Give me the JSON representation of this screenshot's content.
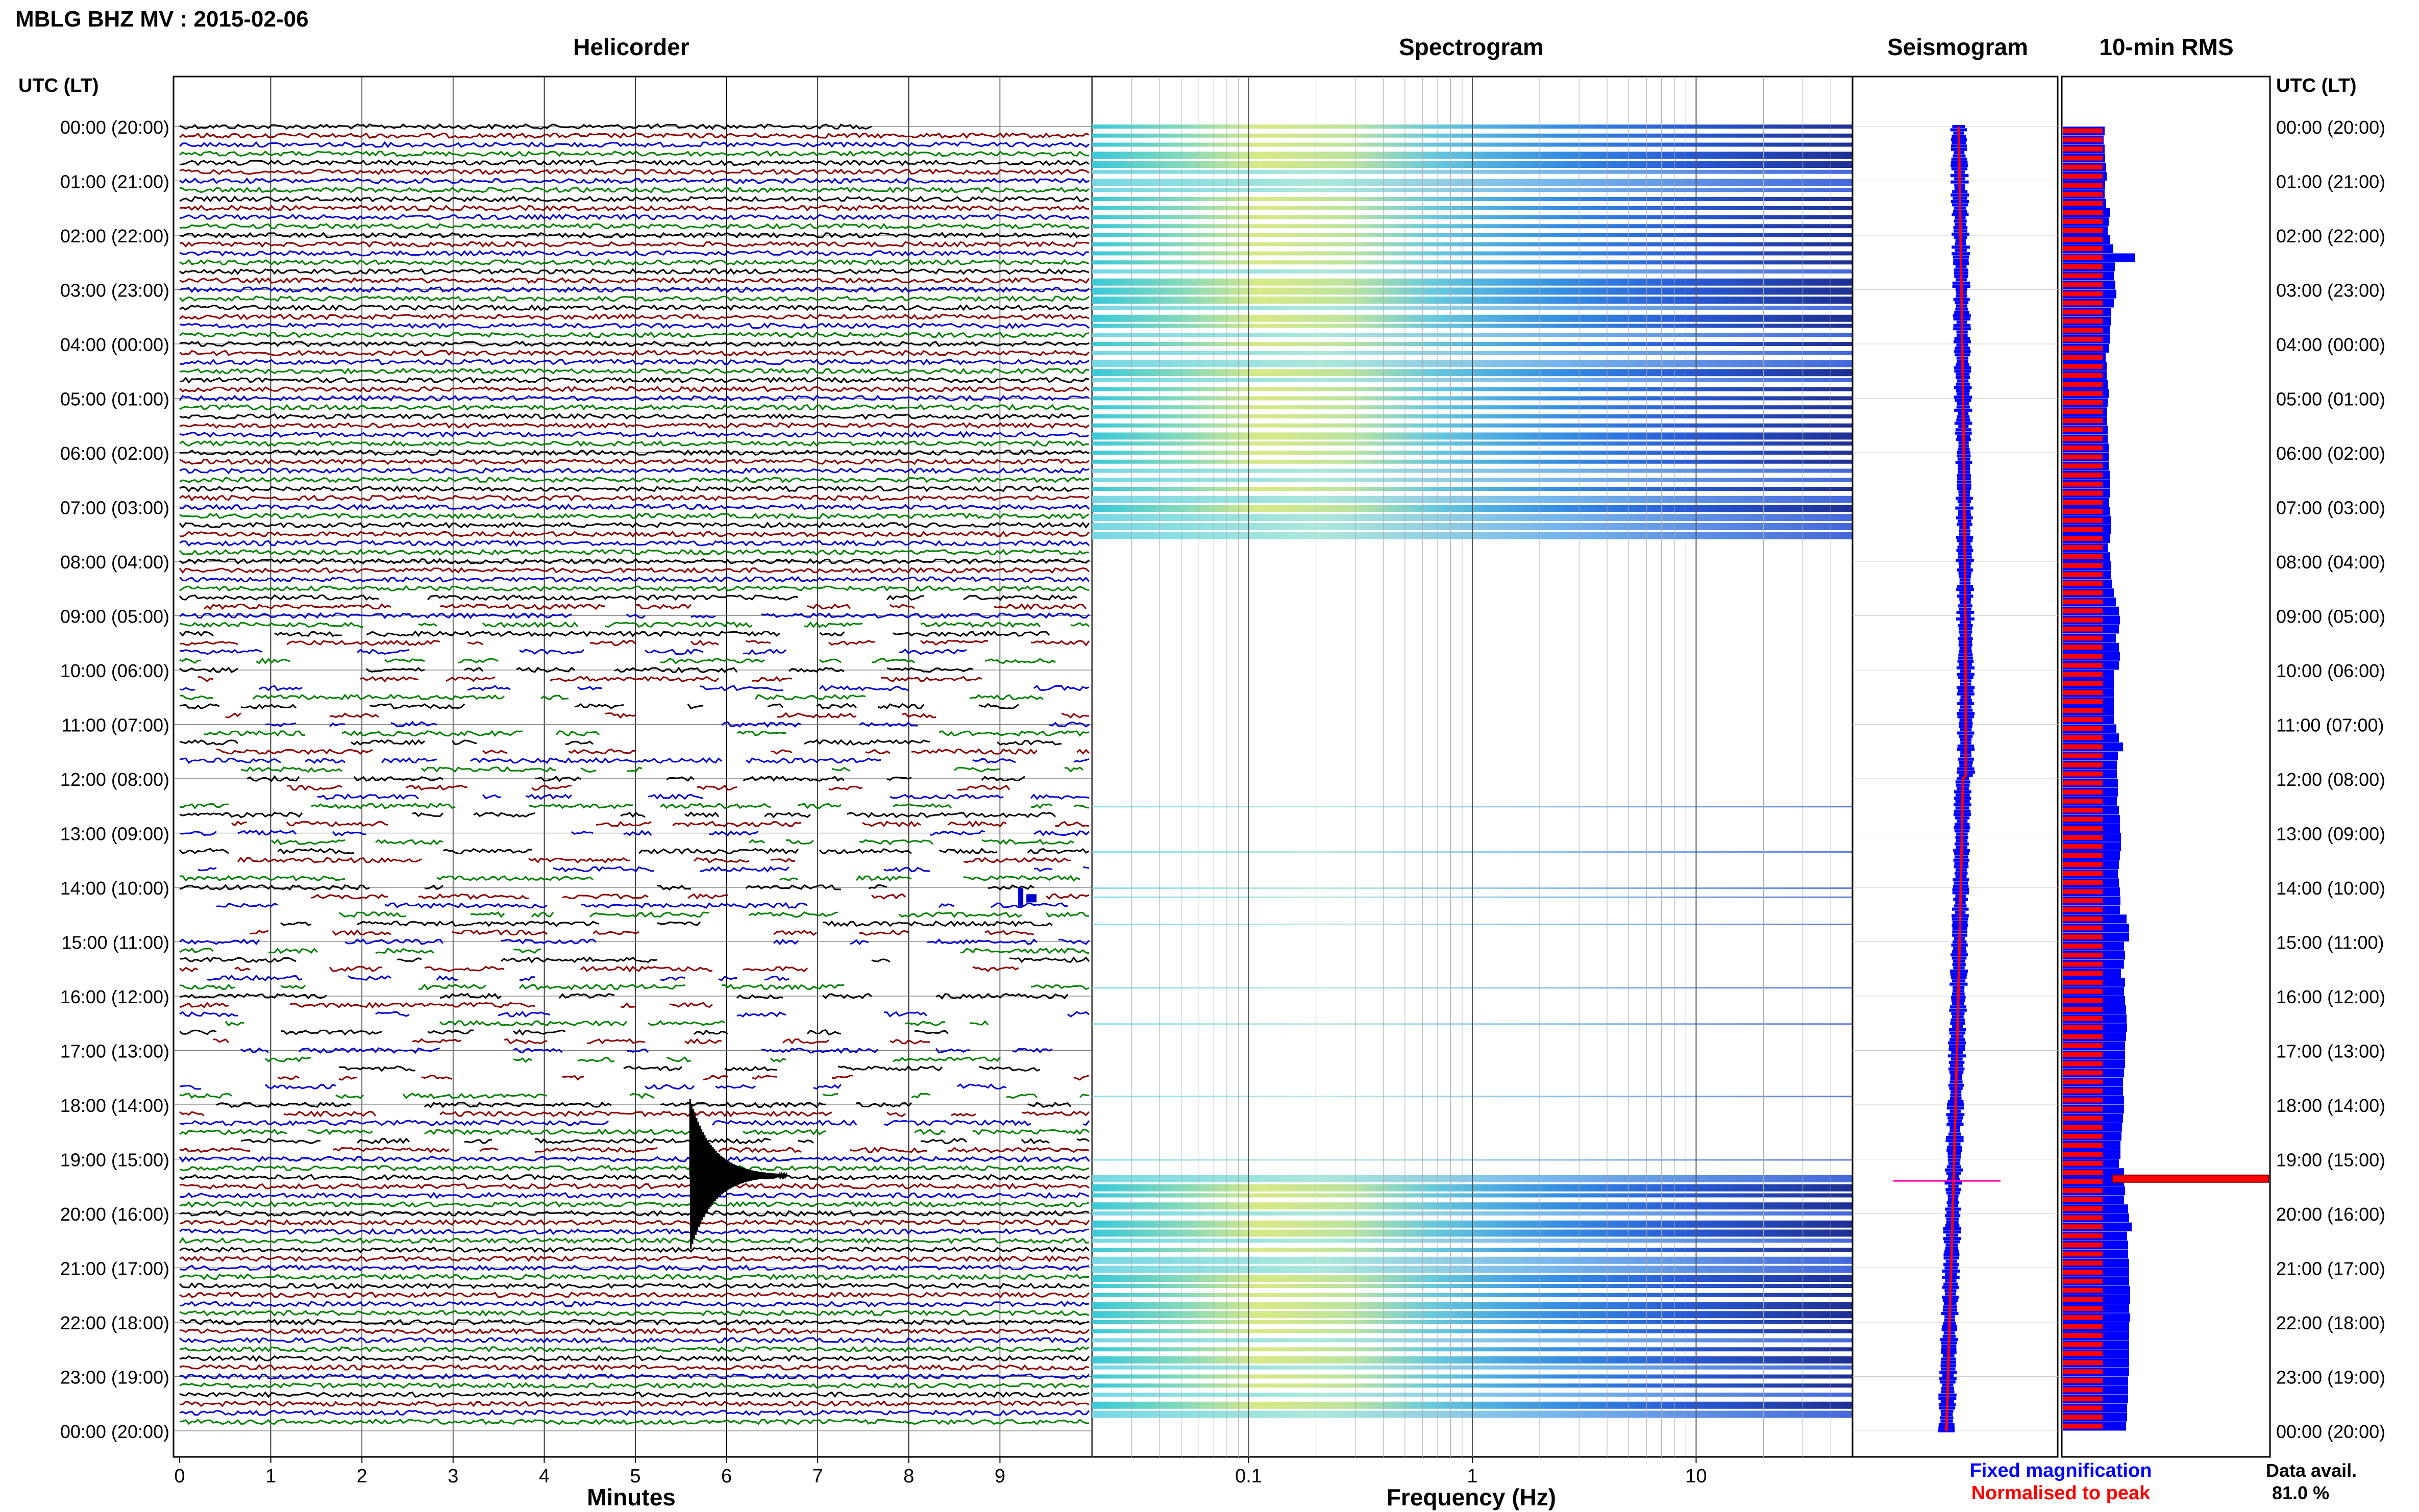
{
  "header": {
    "title": "MBLG BHZ MV : 2015-02-06",
    "utc_label_left": "UTC (LT)",
    "utc_label_right": "UTC (LT)"
  },
  "panels": {
    "helicorder": "Helicorder",
    "spectrogram": "Spectrogram",
    "seismogram": "Seismogram",
    "rms": "10-min RMS"
  },
  "axes": {
    "minutes_label": "Minutes",
    "frequency_label": "Frequency (Hz)",
    "minute_ticks": [
      "0",
      "1",
      "2",
      "3",
      "4",
      "5",
      "6",
      "7",
      "8",
      "9"
    ],
    "frequency_ticks": [
      "0.1",
      "1",
      "10"
    ]
  },
  "time_labels": [
    "00:00 (20:00)",
    "01:00 (21:00)",
    "02:00 (22:00)",
    "03:00 (23:00)",
    "04:00 (00:00)",
    "05:00 (01:00)",
    "06:00 (02:00)",
    "07:00 (03:00)",
    "08:00 (04:00)",
    "09:00 (05:00)",
    "10:00 (06:00)",
    "11:00 (07:00)",
    "12:00 (08:00)",
    "13:00 (09:00)",
    "14:00 (10:00)",
    "15:00 (11:00)",
    "16:00 (12:00)",
    "17:00 (13:00)",
    "18:00 (14:00)",
    "19:00 (15:00)",
    "20:00 (16:00)",
    "21:00 (17:00)",
    "22:00 (18:00)",
    "23:00 (19:00)",
    "00:00 (20:00)"
  ],
  "legend": {
    "fixed": "Fixed magnification",
    "normalised": "Normalised to peak",
    "fixed_color": "#0000ff",
    "normalised_color": "#ff0000"
  },
  "availability": {
    "label": "Data avail.",
    "value": "81.0 %"
  },
  "colors": {
    "trace_cycle": [
      "#000000",
      "#8b0000",
      "#0000cd",
      "#008000"
    ],
    "rms_fixed": "#0000ff",
    "rms_normalised": "#ff0000"
  },
  "chart_data": {
    "type": "heatmap",
    "x_range_minutes": [
      0,
      10
    ],
    "frequency_range_hz": [
      0.02,
      50
    ],
    "y_range_hours": [
      0,
      24
    ],
    "rms_fixed_relative": [
      0.82,
      0.8,
      0.82,
      0.83,
      0.85,
      0.86,
      0.83,
      0.82,
      0.85,
      0.92,
      0.9,
      0.88,
      0.93,
      0.99,
      1.42,
      1.02,
      1.0,
      1.03,
      1.05,
      1.0,
      0.95,
      0.94,
      0.92,
      0.92,
      0.9,
      0.84,
      0.86,
      0.86,
      0.88,
      0.9,
      0.88,
      0.87,
      0.87,
      0.88,
      0.88,
      0.9,
      0.9,
      0.9,
      0.92,
      0.92,
      0.92,
      0.9,
      0.92,
      0.95,
      0.94,
      0.92,
      0.88,
      0.93,
      0.94,
      0.95,
      0.96,
      1.0,
      1.04,
      1.1,
      1.12,
      1.1,
      1.04,
      1.1,
      1.12,
      1.1,
      1.0,
      1.0,
      1.0,
      1.0,
      1.0,
      1.0,
      1.05,
      1.1,
      1.18,
      1.08,
      1.06,
      1.06,
      1.08,
      1.08,
      1.06,
      1.1,
      1.12,
      1.12,
      1.14,
      1.14,
      1.12,
      1.1,
      1.08,
      1.1,
      1.12,
      1.13,
      1.12,
      1.25,
      1.3,
      1.3,
      1.2,
      1.22,
      1.2,
      1.14,
      1.22,
      1.2,
      1.22,
      1.24,
      1.25,
      1.26,
      1.24,
      1.22,
      1.22,
      1.22,
      1.2,
      1.18,
      1.18,
      1.2,
      1.2,
      1.18,
      1.16,
      1.15,
      1.13,
      1.13,
      1.1,
      1.2,
      1.2,
      1.22,
      1.2,
      1.28,
      1.3,
      1.35,
      1.26,
      1.28,
      1.28,
      1.3,
      1.3,
      1.3,
      1.32,
      1.32,
      1.3,
      1.32,
      1.3,
      1.3,
      1.3,
      1.3,
      1.3,
      1.3,
      1.28,
      1.28,
      1.28,
      1.26,
      1.26,
      1.24
    ],
    "rms_normalised_relative": 1.0,
    "events": [
      {
        "time_hour": 14.2,
        "note_minute": 9.2
      },
      {
        "time_hour": 19.3,
        "note_minute": 5.6
      }
    ],
    "spectrogram_active_hours": [
      [
        0,
        7.6
      ],
      [
        19.3,
        23.7
      ]
    ]
  }
}
